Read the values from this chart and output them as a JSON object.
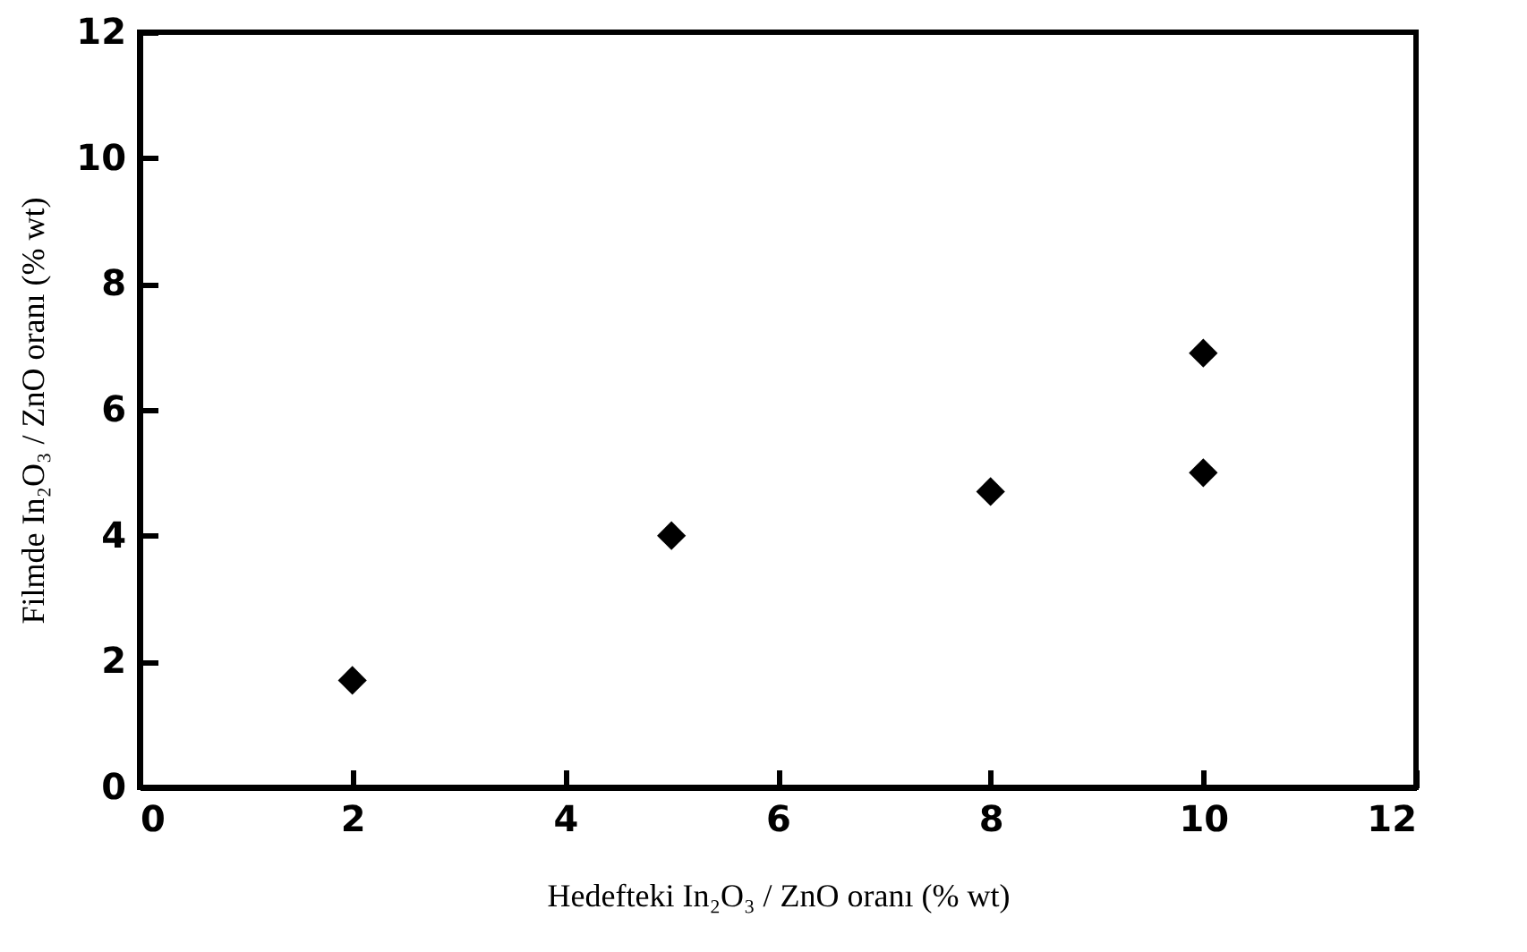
{
  "chart_data": {
    "type": "scatter",
    "xlabel": "Hedefteki In₂O₃ / ZnO oranı (% wt)",
    "ylabel": "Filmde In₂O₃ / ZnO oranı (% wt)",
    "x": [
      2,
      5,
      8,
      10,
      10
    ],
    "series": [
      {
        "color": "#000000",
        "values": [
          1.7,
          4.0,
          4.7,
          5.0,
          6.9
        ]
      }
    ],
    "xlim": [
      0,
      12
    ],
    "xticks": [
      0,
      2,
      4,
      6,
      8,
      10,
      12
    ],
    "ylim": [
      0,
      12
    ],
    "yticks": [
      0,
      2,
      4,
      6,
      8,
      10,
      12
    ],
    "grid": false,
    "marker": "diamond"
  }
}
